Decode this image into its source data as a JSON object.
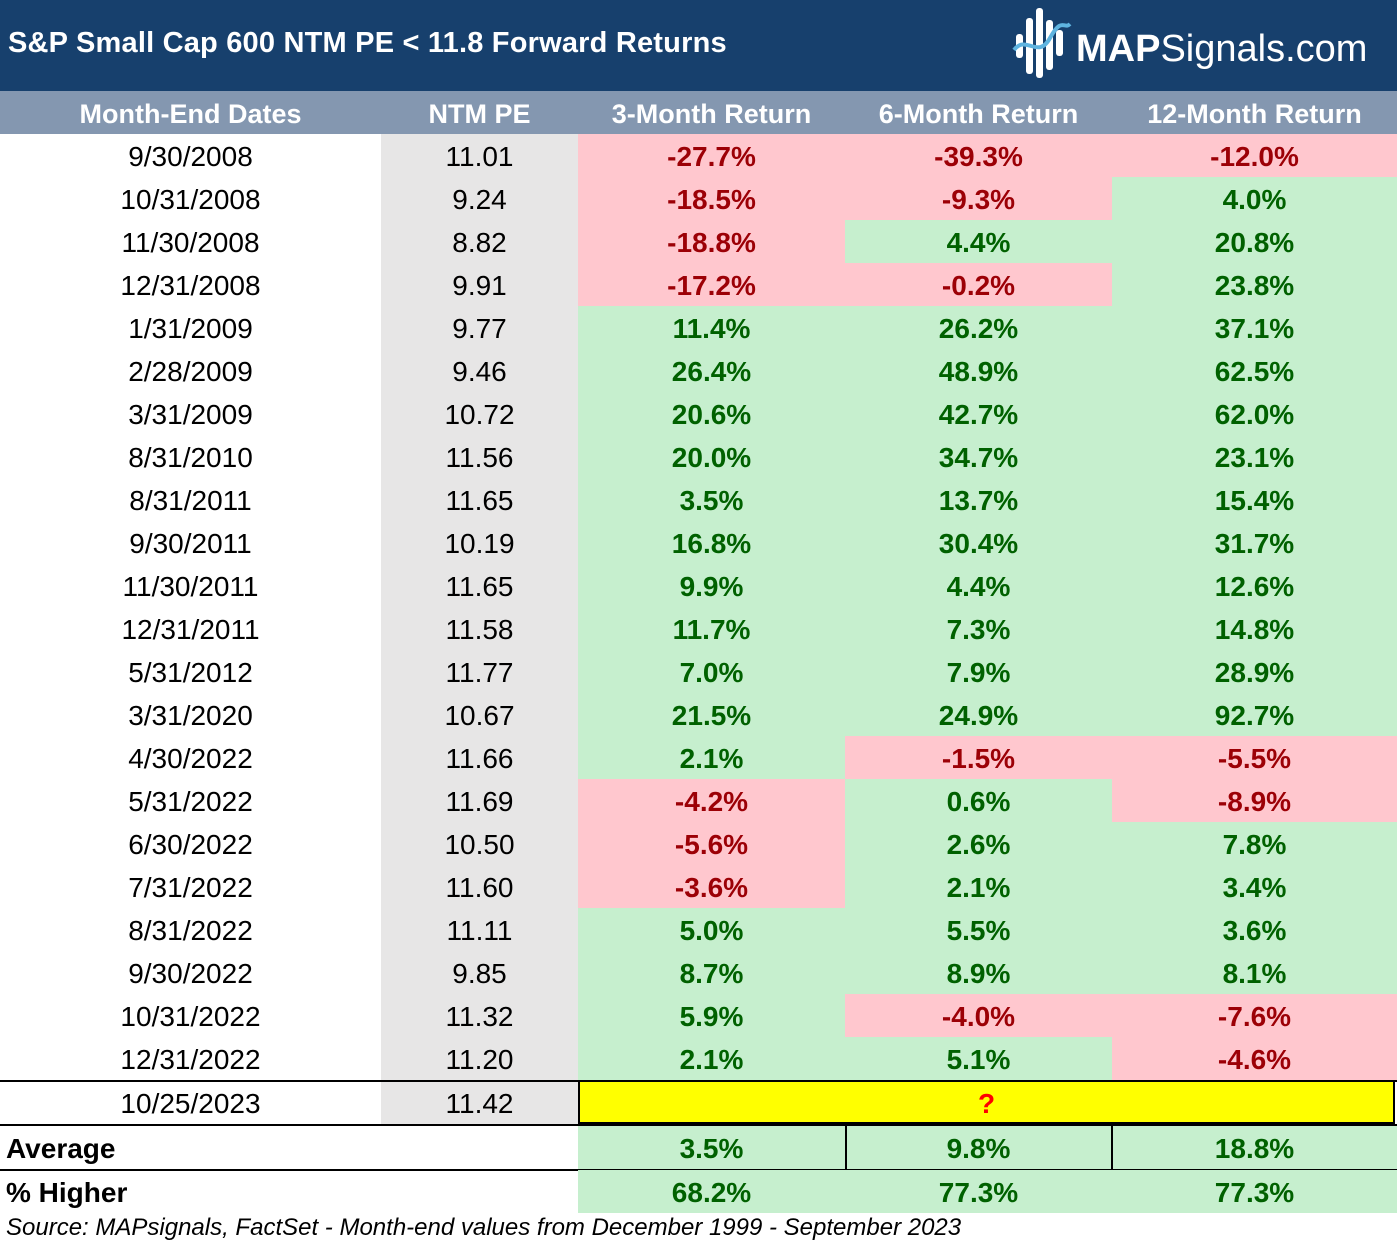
{
  "title": "S&P Small Cap 600 NTM PE < 11.8 Forward Returns",
  "logo": {
    "bold": "MAP",
    "rest": "Signals.com",
    "icon": "map-signals-logo-icon"
  },
  "colors": {
    "title_bg": "#17406d",
    "header_bg": "#8497b0",
    "pos_bg": "#c6efce",
    "pos_text": "#006100",
    "neg_bg": "#ffc7ce",
    "neg_text": "#9c0006",
    "pe_bg": "#e7e6e6",
    "highlight": "#ffff00"
  },
  "chart_data": {
    "type": "table",
    "title": "S&P Small Cap 600 NTM PE < 11.8 Forward Returns",
    "columns": [
      "Month-End Dates",
      "NTM PE",
      "3-Month Return",
      "6-Month Return",
      "12-Month Return"
    ],
    "rows": [
      [
        "9/30/2008",
        "11.01",
        "-27.7%",
        "-39.3%",
        "-12.0%"
      ],
      [
        "10/31/2008",
        "9.24",
        "-18.5%",
        "-9.3%",
        "4.0%"
      ],
      [
        "11/30/2008",
        "8.82",
        "-18.8%",
        "4.4%",
        "20.8%"
      ],
      [
        "12/31/2008",
        "9.91",
        "-17.2%",
        "-0.2%",
        "23.8%"
      ],
      [
        "1/31/2009",
        "9.77",
        "11.4%",
        "26.2%",
        "37.1%"
      ],
      [
        "2/28/2009",
        "9.46",
        "26.4%",
        "48.9%",
        "62.5%"
      ],
      [
        "3/31/2009",
        "10.72",
        "20.6%",
        "42.7%",
        "62.0%"
      ],
      [
        "8/31/2010",
        "11.56",
        "20.0%",
        "34.7%",
        "23.1%"
      ],
      [
        "8/31/2011",
        "11.65",
        "3.5%",
        "13.7%",
        "15.4%"
      ],
      [
        "9/30/2011",
        "10.19",
        "16.8%",
        "30.4%",
        "31.7%"
      ],
      [
        "11/30/2011",
        "11.65",
        "9.9%",
        "4.4%",
        "12.6%"
      ],
      [
        "12/31/2011",
        "11.58",
        "11.7%",
        "7.3%",
        "14.8%"
      ],
      [
        "5/31/2012",
        "11.77",
        "7.0%",
        "7.9%",
        "28.9%"
      ],
      [
        "3/31/2020",
        "10.67",
        "21.5%",
        "24.9%",
        "92.7%"
      ],
      [
        "4/30/2022",
        "11.66",
        "2.1%",
        "-1.5%",
        "-5.5%"
      ],
      [
        "5/31/2022",
        "11.69",
        "-4.2%",
        "0.6%",
        "-8.9%"
      ],
      [
        "6/30/2022",
        "10.50",
        "-5.6%",
        "2.6%",
        "7.8%"
      ],
      [
        "7/31/2022",
        "11.60",
        "-3.6%",
        "2.1%",
        "3.4%"
      ],
      [
        "8/31/2022",
        "11.11",
        "5.0%",
        "5.5%",
        "3.6%"
      ],
      [
        "9/30/2022",
        "9.85",
        "8.7%",
        "8.9%",
        "8.1%"
      ],
      [
        "10/31/2022",
        "11.32",
        "5.9%",
        "-4.0%",
        "-7.6%"
      ],
      [
        "12/31/2022",
        "11.20",
        "2.1%",
        "5.1%",
        "-4.6%"
      ]
    ],
    "current": {
      "date": "10/25/2023",
      "pe": "11.42",
      "returns": "?"
    },
    "summary": [
      {
        "label": "Average",
        "values": [
          "3.5%",
          "9.8%",
          "18.8%"
        ]
      },
      {
        "label": "% Higher",
        "values": [
          "68.2%",
          "77.3%",
          "77.3%"
        ]
      }
    ]
  },
  "source": "Source: MAPsignals, FactSet - Month-end values from December 1999 - September 2023"
}
